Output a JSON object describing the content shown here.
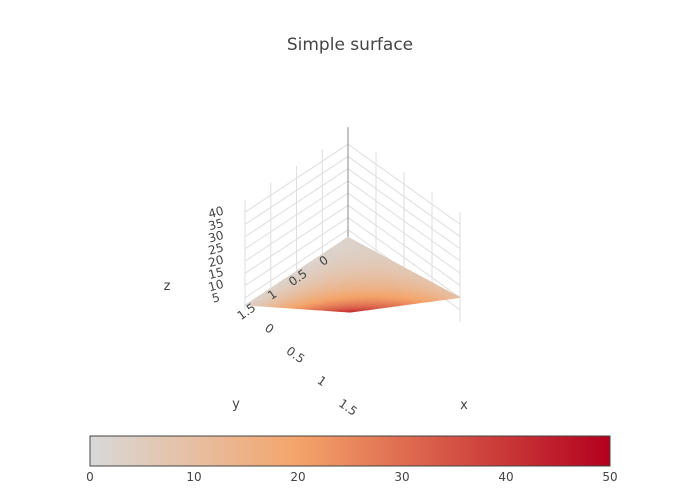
{
  "chart_data": {
    "type": "surface",
    "title": "Simple surface",
    "x_label": "x",
    "y_label": "y",
    "z_label": "z",
    "x": [
      0,
      2
    ],
    "y": [
      0,
      2
    ],
    "z": [
      [
        2,
        10
      ],
      [
        2,
        42
      ]
    ],
    "x_ticks": [
      "0",
      "0.5",
      "1",
      "1.5"
    ],
    "y_ticks": [
      "0",
      "0.5",
      "1",
      "1.5"
    ],
    "z_ticks": [
      "5",
      "10",
      "15",
      "20",
      "25",
      "30",
      "35",
      "40"
    ],
    "colorbar": {
      "range": [
        0,
        50
      ],
      "ticks": [
        "0",
        "10",
        "20",
        "30",
        "40",
        "50"
      ],
      "colorscale": [
        "#d9d9d9",
        "#f4a46a",
        "#b4001e"
      ]
    }
  }
}
